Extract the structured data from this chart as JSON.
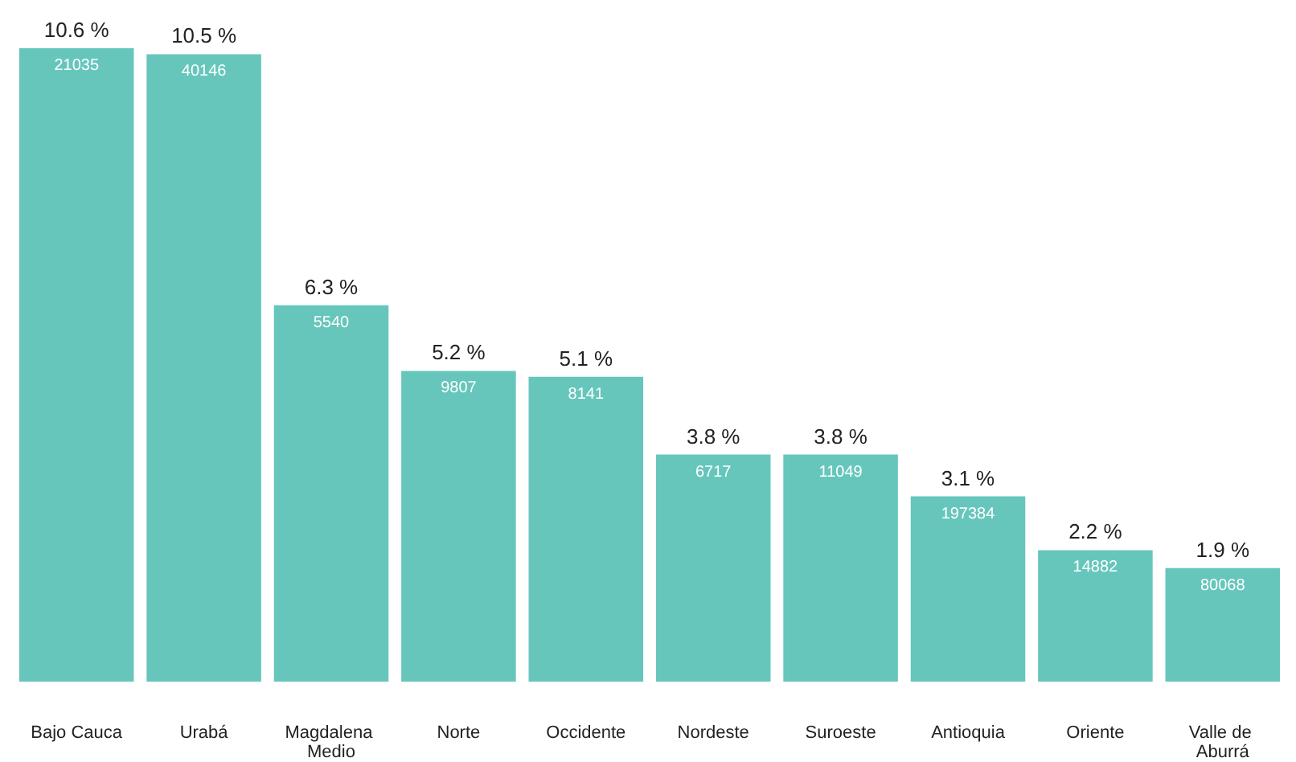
{
  "chart_data": {
    "type": "bar",
    "categories": [
      "Bajo Cauca",
      "Urabá",
      "Magdalena Medio",
      "Norte",
      "Occidente",
      "Nordeste",
      "Suroeste",
      "Antioquia",
      "Oriente",
      "Valle de Aburrá"
    ],
    "values": [
      10.6,
      10.5,
      6.3,
      5.2,
      5.1,
      3.8,
      3.8,
      3.1,
      2.2,
      1.9
    ],
    "value_labels": [
      "10.6 %",
      "10.5 %",
      "6.3 %",
      "5.2 %",
      "5.1 %",
      "3.8 %",
      "3.8 %",
      "3.1 %",
      "2.2 %",
      "1.9 %"
    ],
    "color": "#66c6bc",
    "annotations": [
      {
        "text": "21035",
        "x": "Bajo Cauca",
        "y": 10.6
      },
      {
        "text": "40146",
        "x": "Urabá",
        "y": 10.5
      },
      {
        "text": "5540",
        "x": "Magdalena Medio",
        "y": 6.3
      },
      {
        "text": "9807",
        "x": "Norte",
        "y": 5.2
      },
      {
        "text": "8141",
        "x": "Occidente",
        "y": 5.1
      },
      {
        "text": "6717",
        "x": "Nordeste",
        "y": 3.8
      },
      {
        "text": "11049",
        "x": "Suroeste",
        "y": 3.8
      },
      {
        "text": "197384",
        "x": "Antioquia",
        "y": 3.1
      },
      {
        "text": "14882",
        "x": "Oriente",
        "y": 2.2
      },
      {
        "text": "80068",
        "x": "Valle de Aburrá",
        "y": 1.9
      }
    ]
  }
}
